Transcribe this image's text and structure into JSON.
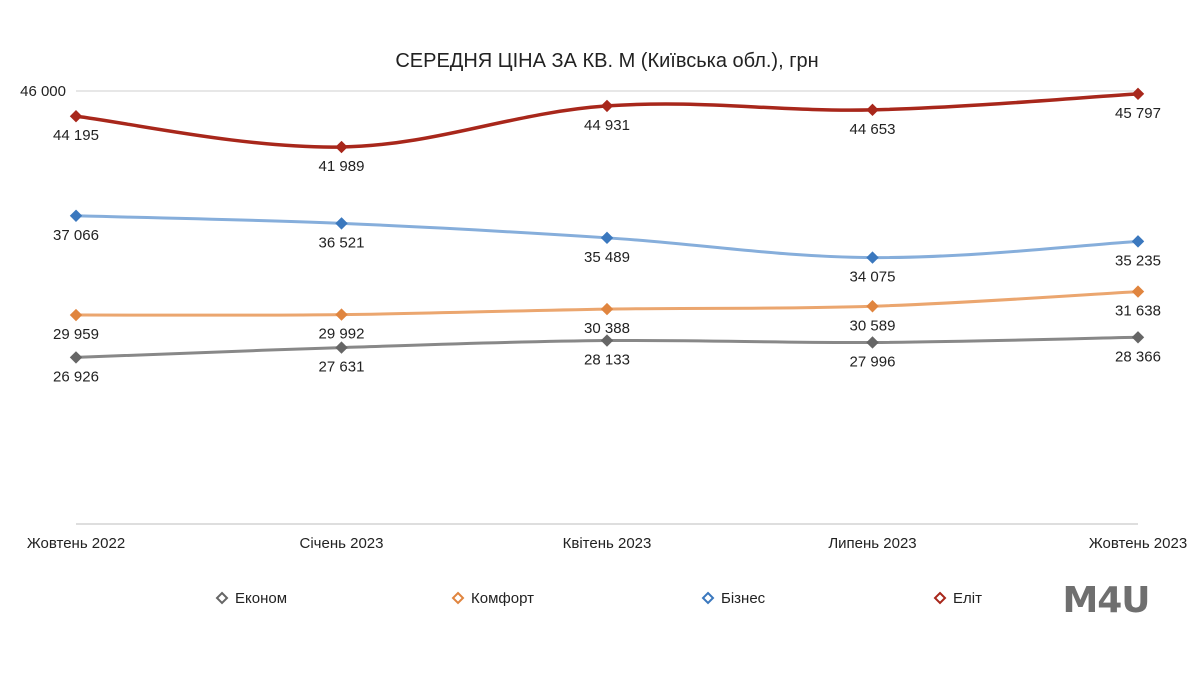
{
  "chart_data": {
    "type": "line",
    "title": "СЕРЕДНЯ ЦІНА ЗА КВ. М (Київська обл.), грн",
    "categories": [
      "Жовтень 2022",
      "Січень 2023",
      "Квітень 2023",
      "Липень 2023",
      "Жовтень 2023"
    ],
    "y_tick_labels": [
      "46 000"
    ],
    "ylim": [
      15000,
      46000
    ],
    "xlabel": "",
    "ylabel": "",
    "grid": false,
    "legend_position": "bottom",
    "series": [
      {
        "name": "Економ",
        "color": "#888888",
        "marker_color": "#666666",
        "values": [
          26926,
          27631,
          28133,
          27996,
          28366
        ],
        "labels": [
          "26 926",
          "27 631",
          "28 133",
          "27 996",
          "28 366"
        ]
      },
      {
        "name": "Комфорт",
        "color": "#EBA66F",
        "marker_color": "#E0853F",
        "values": [
          29959,
          29992,
          30388,
          30589,
          31638
        ],
        "labels": [
          "29 959",
          "29 992",
          "30 388",
          "30 589",
          "31 638"
        ]
      },
      {
        "name": "Бізнес",
        "color": "#86AEDB",
        "marker_color": "#3B78BE",
        "values": [
          37066,
          36521,
          35489,
          34075,
          35235
        ],
        "labels": [
          "37 066",
          "36 521",
          "35 489",
          "34 075",
          "35 235"
        ]
      },
      {
        "name": "Еліт",
        "color": "#A8271B",
        "marker_color": "#A8271B",
        "values": [
          44195,
          41989,
          44931,
          44653,
          45797
        ],
        "labels": [
          "44 195",
          "41 989",
          "44 931",
          "44 653",
          "45 797"
        ]
      }
    ]
  },
  "logo": {
    "text": "M4U"
  }
}
